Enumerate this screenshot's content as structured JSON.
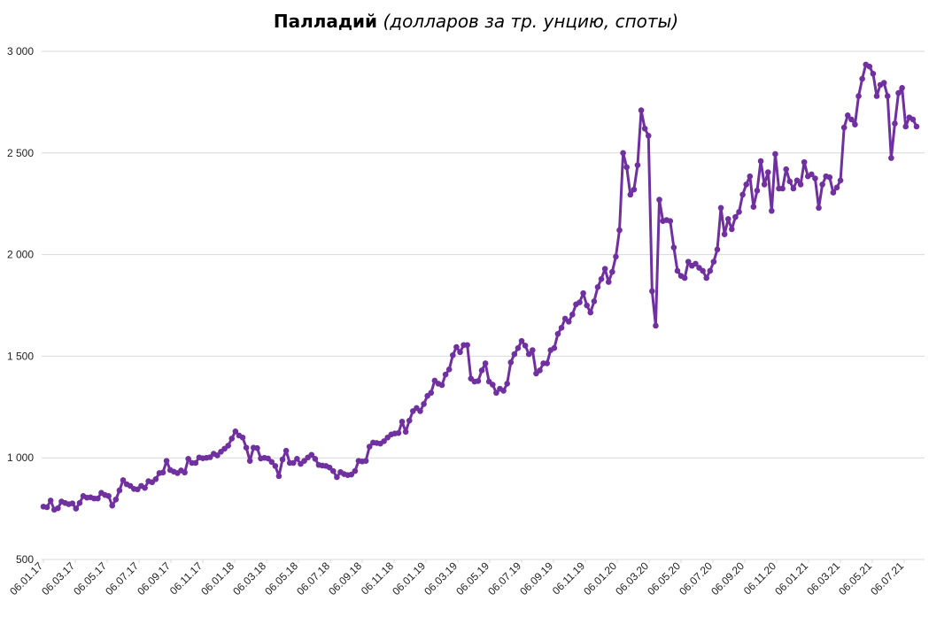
{
  "chart_data": {
    "type": "line",
    "title": "Палладий",
    "subtitle": "(долларов за тр. унцию, споты)",
    "xlabel": "",
    "ylabel": "",
    "ylim": [
      500,
      3000
    ],
    "yticks": [
      500,
      1000,
      1500,
      2000,
      2500,
      3000
    ],
    "ytick_labels": [
      "500",
      "1 000",
      "1 500",
      "2 000",
      "2 500",
      "3 000"
    ],
    "xtick_labels": [
      "06.01.17",
      "06.03.17",
      "06.05.17",
      "06.07.17",
      "06.09.17",
      "06.11.17",
      "06.01.18",
      "06.03.18",
      "06.05.18",
      "06.07.18",
      "06.09.18",
      "06.11.18",
      "06.01.19",
      "06.03.19",
      "06.05.19",
      "06.07.19",
      "06.09.19",
      "06.11.19",
      "06.01.20",
      "06.03.20",
      "06.05.20",
      "06.07.20",
      "06.09.20",
      "06.11.20",
      "06.01.21",
      "06.03.21",
      "06.05.21",
      "06.07.21"
    ],
    "grid": true,
    "legend": "none",
    "line_color": "#7030A0",
    "series": [
      {
        "name": "",
        "values": [
          760,
          757,
          790,
          745,
          752,
          785,
          778,
          772,
          776,
          750,
          778,
          812,
          804,
          806,
          800,
          800,
          828,
          817,
          812,
          765,
          795,
          840,
          890,
          870,
          862,
          847,
          845,
          862,
          852,
          885,
          880,
          895,
          925,
          928,
          985,
          940,
          932,
          925,
          938,
          928,
          995,
          975,
          975,
          1002,
          998,
          1000,
          1003,
          1020,
          1012,
          1030,
          1045,
          1060,
          1095,
          1130,
          1110,
          1100,
          1050,
          985,
          1050,
          1048,
          997,
          1000,
          997,
          980,
          960,
          910,
          992,
          1035,
          975,
          975,
          995,
          970,
          985,
          1002,
          1015,
          995,
          965,
          962,
          960,
          952,
          935,
          905,
          930,
          920,
          915,
          918,
          935,
          985,
          982,
          985,
          1055,
          1075,
          1073,
          1070,
          1082,
          1100,
          1115,
          1120,
          1122,
          1178,
          1128,
          1183,
          1230,
          1245,
          1230,
          1265,
          1305,
          1320,
          1380,
          1365,
          1358,
          1410,
          1435,
          1505,
          1545,
          1520,
          1555,
          1555,
          1390,
          1375,
          1378,
          1430,
          1465,
          1375,
          1360,
          1320,
          1340,
          1330,
          1365,
          1470,
          1510,
          1540,
          1575,
          1552,
          1510,
          1530,
          1415,
          1430,
          1465,
          1465,
          1530,
          1540,
          1610,
          1640,
          1685,
          1670,
          1705,
          1755,
          1765,
          1810,
          1750,
          1715,
          1770,
          1840,
          1880,
          1930,
          1865,
          1915,
          1990,
          2120,
          2500,
          2430,
          2295,
          2320,
          2440,
          2710,
          2620,
          2585,
          1820,
          1650,
          2270,
          2165,
          2170,
          2165,
          2035,
          1920,
          1895,
          1885,
          1965,
          1945,
          1955,
          1935,
          1920,
          1885,
          1920,
          1965,
          2025,
          2230,
          2100,
          2175,
          2125,
          2185,
          2210,
          2295,
          2345,
          2385,
          2235,
          2315,
          2460,
          2345,
          2405,
          2215,
          2495,
          2325,
          2325,
          2420,
          2360,
          2325,
          2365,
          2345,
          2455,
          2385,
          2395,
          2375,
          2230,
          2345,
          2385,
          2380,
          2305,
          2330,
          2365,
          2625,
          2685,
          2665,
          2640,
          2780,
          2865,
          2935,
          2925,
          2890,
          2780,
          2835,
          2845,
          2780,
          2475,
          2645,
          2795,
          2820,
          2630,
          2675,
          2665,
          2630
        ]
      }
    ]
  }
}
